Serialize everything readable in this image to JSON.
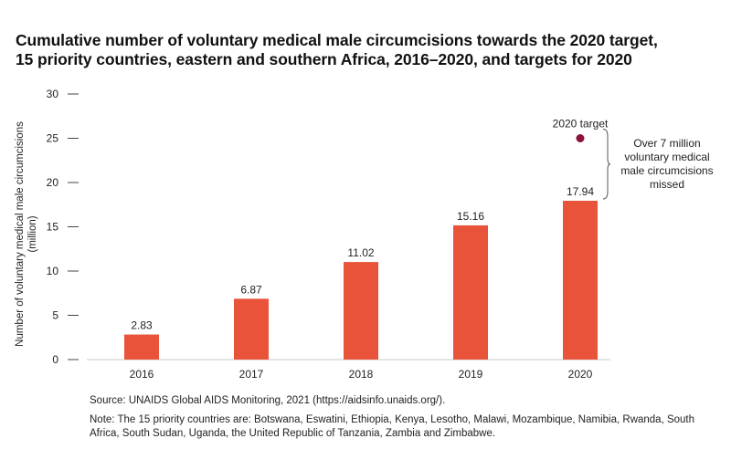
{
  "title": {
    "line1": "Cumulative number of voluntary medical male circumcisions towards the 2020 target,",
    "line2": "15 priority countries, eastern and southern Africa, 2016–2020, and targets for 2020"
  },
  "chart_data": {
    "type": "bar",
    "categories": [
      "2016",
      "2017",
      "2018",
      "2019",
      "2020"
    ],
    "values": [
      2.83,
      6.87,
      11.02,
      15.16,
      17.94
    ],
    "data_labels": [
      "2.83",
      "6.87",
      "11.02",
      "15.16",
      "17.94"
    ],
    "ylabel": "Number of voluntary medical male circumcisions (million)",
    "ylabel_lines": [
      "Number of voluntary medical male circumcisions",
      "(million)"
    ],
    "ylim": [
      0,
      30
    ],
    "yticks": [
      0,
      5,
      10,
      15,
      20,
      25,
      30
    ],
    "grid": false,
    "bar_color": "#e8533a",
    "target": {
      "label": "2020 target",
      "category": "2020",
      "value": 25,
      "color": "#8b1538"
    },
    "annotation": {
      "lines": [
        "Over 7 million",
        "voluntary medical",
        "male circumcisions",
        "missed"
      ]
    }
  },
  "source": "Source: UNAIDS Global AIDS Monitoring, 2021 (https://aidsinfo.unaids.org/).",
  "note": "Note: The 15 priority countries are: Botswana, Eswatini, Ethiopia, Kenya, Lesotho, Malawi, Mozambique, Namibia, Rwanda, South Africa, South Sudan, Uganda, the United Republic of Tanzania, Zambia and Zimbabwe."
}
